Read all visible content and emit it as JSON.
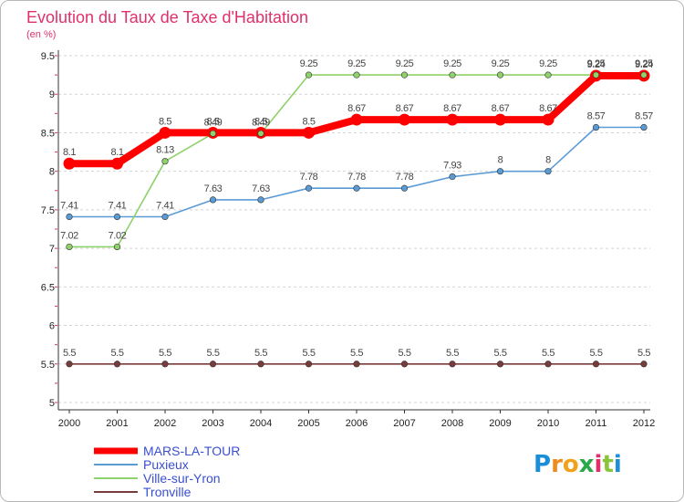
{
  "title": "Evolution du Taux de Taxe d'Habitation",
  "subtitle": "(en %)",
  "brand": {
    "letters": [
      "P",
      "r",
      "o",
      "x",
      "i",
      "t",
      "i"
    ],
    "colors": [
      "#1a8fd8",
      "#f08a1c",
      "#f0a21c",
      "#2aa84a",
      "#e0306a",
      "#8ac43a",
      "#1a8fd8"
    ]
  },
  "chart_data": {
    "type": "line",
    "title": "Evolution du Taux de Taxe d'Habitation",
    "ylabel": "(en %)",
    "xlabel": "",
    "x": [
      "2000",
      "2001",
      "2002",
      "2003",
      "2004",
      "2005",
      "2006",
      "2007",
      "2008",
      "2009",
      "2010",
      "2011",
      "2012"
    ],
    "ylim": [
      5,
      9.5
    ],
    "yticks": [
      "5",
      "5.5",
      "6",
      "6.5",
      "7",
      "7.5",
      "8",
      "8.5",
      "9",
      "9.5"
    ],
    "grid": "horizontal",
    "legend_position": "bottom-left",
    "series": [
      {
        "name": "MARS-LA-TOUR",
        "color": "#ff0000",
        "emphasis": true,
        "values": [
          8.1,
          8.1,
          8.5,
          8.5,
          8.5,
          8.5,
          8.67,
          8.67,
          8.67,
          8.67,
          8.67,
          9.24,
          9.24
        ],
        "labels": [
          "8.1",
          "8.1",
          "8.5",
          "8.5",
          "8.5",
          "8.5",
          "8.67",
          "8.67",
          "8.67",
          "8.67",
          "8.67",
          "9.24",
          "9.24"
        ]
      },
      {
        "name": "Puxieux",
        "color": "#5b9bd5",
        "values": [
          7.41,
          7.41,
          7.41,
          7.63,
          7.63,
          7.78,
          7.78,
          7.78,
          7.93,
          8,
          8,
          8.57,
          8.57
        ],
        "labels": [
          "7.41",
          "7.41",
          "7.41",
          "7.63",
          "7.63",
          "7.78",
          "7.78",
          "7.78",
          "7.93",
          "8",
          "8",
          "8.57",
          "8.57"
        ]
      },
      {
        "name": "Ville-sur-Yron",
        "color": "#8fd16a",
        "values": [
          7.02,
          7.02,
          8.13,
          8.49,
          8.49,
          9.25,
          9.25,
          9.25,
          9.25,
          9.25,
          9.25,
          9.25,
          9.25
        ],
        "labels": [
          "7.02",
          "7.02",
          "8.13",
          "8.49",
          "8.49",
          "9.25",
          "9.25",
          "9.25",
          "9.25",
          "9.25",
          "9.25",
          "9.25",
          "9.25"
        ]
      },
      {
        "name": "Tronville",
        "color": "#7a3b3b",
        "values": [
          5.5,
          5.5,
          5.5,
          5.5,
          5.5,
          5.5,
          5.5,
          5.5,
          5.5,
          5.5,
          5.5,
          5.5,
          5.5
        ],
        "labels": [
          "5.5",
          "5.5",
          "5.5",
          "5.5",
          "5.5",
          "5.5",
          "5.5",
          "5.5",
          "5.5",
          "5.5",
          "5.5",
          "5.5",
          "5.5"
        ]
      }
    ]
  }
}
